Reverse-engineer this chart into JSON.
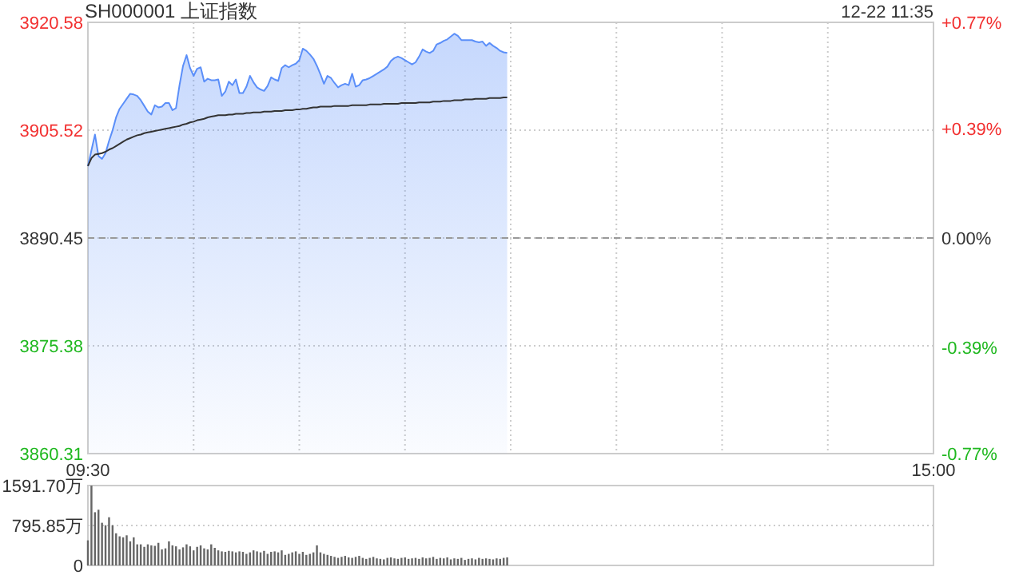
{
  "chart_data": [
    {
      "type": "area",
      "title": "SH000001 上证指数",
      "annotations": [
        "12-22 11:35"
      ],
      "categories": [
        "09:30",
        null,
        null,
        null,
        null,
        null,
        null,
        null,
        null,
        null,
        null,
        null,
        null,
        null,
        null,
        null,
        null,
        null,
        null,
        null,
        null,
        null,
        null,
        null,
        null,
        null,
        null,
        null,
        null,
        null,
        null,
        null,
        null,
        null,
        null,
        null,
        null,
        null,
        null,
        null,
        null,
        null,
        null,
        null,
        null,
        null,
        null,
        null,
        null,
        null,
        null,
        null,
        null,
        null,
        null,
        null,
        null,
        null,
        null,
        null,
        null,
        null,
        null,
        null,
        null,
        null,
        null,
        null,
        null,
        null,
        null,
        null,
        null,
        null,
        null,
        null,
        null,
        null,
        null,
        null,
        null,
        null,
        null,
        null,
        null,
        null,
        null,
        null,
        null,
        null,
        null,
        null,
        null,
        null,
        null,
        null,
        null,
        null,
        null,
        null,
        null,
        null,
        null,
        null,
        null,
        null,
        null,
        null,
        null,
        null,
        null,
        null,
        null,
        null,
        null,
        null,
        null,
        null,
        null,
        null,
        null,
        null,
        null,
        null,
        null,
        null,
        null,
        null,
        null,
        null,
        null,
        null,
        null,
        null,
        null,
        null,
        null,
        null,
        null,
        null,
        null,
        null,
        null,
        null,
        null,
        null,
        null,
        null,
        null,
        null,
        null,
        null,
        null,
        null,
        null,
        null,
        null,
        null,
        null,
        null,
        null,
        null,
        null,
        null,
        null,
        null,
        null,
        null,
        null,
        null,
        null,
        null,
        null,
        null,
        null,
        null,
        null,
        null,
        null,
        null,
        null,
        null,
        null,
        null,
        null,
        null,
        null,
        null,
        null,
        null,
        null,
        null,
        null,
        null,
        null,
        null,
        null,
        null,
        null,
        null,
        null,
        null,
        null,
        null,
        null,
        null,
        null,
        null,
        null,
        null,
        null,
        null,
        null,
        null,
        null,
        null,
        null,
        null,
        null,
        null,
        null,
        null,
        null,
        null,
        null,
        null,
        null,
        null,
        null,
        null,
        null,
        null,
        null,
        null,
        null,
        null,
        null,
        null,
        null,
        null,
        "15:00"
      ],
      "ylim": [
        3860.31,
        3920.58
      ],
      "yticks": [
        3860.31,
        3875.38,
        3890.45,
        3905.52,
        3920.58
      ],
      "y2lim": [
        -0.77,
        0.77
      ],
      "y2ticks": [
        {
          "value": -0.77,
          "label": "-0.77%"
        },
        {
          "value": -0.39,
          "label": "-0.39%"
        },
        {
          "value": 0,
          "label": "0.00%"
        },
        {
          "value": 0.39,
          "label": "+0.39%"
        },
        {
          "value": 0.77,
          "label": "+0.77%"
        }
      ],
      "grid": true,
      "ref_lines": [
        {
          "axis": "y",
          "value": 3890.45,
          "line_style": "dashed",
          "color": "#999999"
        }
      ],
      "series": [
        {
          "color": "#5b8ff9",
          "values": [
            3900.5,
            3902.7,
            3904.9,
            3901.9,
            3901.5,
            3902.3,
            3904.0,
            3905.5,
            3907.3,
            3908.5,
            3909.2,
            3909.9,
            3910.6,
            3910.5,
            3910.3,
            3909.7,
            3908.9,
            3908.1,
            3907.7,
            3909.0,
            3908.7,
            3908.8,
            3909.3,
            3909.3,
            3908.3,
            3908.6,
            3911.8,
            3914.5,
            3916.0,
            3914.2,
            3913.1,
            3914.1,
            3914.3,
            3912.3,
            3912.7,
            3912.5,
            3912.5,
            3912.6,
            3910.3,
            3910.9,
            3912.3,
            3911.8,
            3912.6,
            3910.7,
            3910.7,
            3911.6,
            3913.1,
            3912.2,
            3911.5,
            3911.2,
            3911.0,
            3911.7,
            3912.9,
            3912.6,
            3912.4,
            3914.2,
            3914.6,
            3914.3,
            3914.6,
            3914.8,
            3915.3,
            3916.9,
            3916.6,
            3916.1,
            3915.5,
            3914.5,
            3913.3,
            3912.0,
            3913.1,
            3912.8,
            3912.1,
            3911.5,
            3911.8,
            3912.0,
            3911.8,
            3913.4,
            3911.6,
            3911.8,
            3912.5,
            3912.6,
            3912.8,
            3913.1,
            3913.4,
            3913.7,
            3914.0,
            3914.4,
            3915.2,
            3915.6,
            3915.8,
            3915.6,
            3915.3,
            3915.0,
            3914.7,
            3915.0,
            3915.8,
            3916.8,
            3916.5,
            3916.3,
            3916.6,
            3917.5,
            3917.7,
            3918.0,
            3918.2,
            3918.6,
            3919.0,
            3918.7,
            3918.1,
            3918.1,
            3918.1,
            3918.1,
            3917.9,
            3917.8,
            3917.9,
            3917.3,
            3917.7,
            3917.3,
            3917.0,
            3916.6,
            3916.4,
            3916.3,
            null,
            null,
            null,
            null,
            null,
            null,
            null,
            null,
            null,
            null,
            null,
            null,
            null,
            null,
            null,
            null,
            null,
            null,
            null,
            null,
            null,
            null,
            null,
            null,
            null,
            null,
            null,
            null,
            null,
            null,
            null,
            null,
            null,
            null,
            null,
            null,
            null,
            null,
            null,
            null,
            null,
            null,
            null,
            null,
            null,
            null,
            null,
            null,
            null,
            null,
            null,
            null,
            null,
            null,
            null,
            null,
            null,
            null,
            null,
            null,
            null,
            null,
            null,
            null,
            null,
            null,
            null,
            null,
            null,
            null,
            null,
            null,
            null,
            null,
            null,
            null,
            null,
            null,
            null,
            null,
            null,
            null,
            null,
            null,
            null,
            null,
            null,
            null,
            null,
            null,
            null,
            null,
            null,
            null,
            null,
            null,
            null,
            null,
            null,
            null,
            null,
            null,
            null,
            null,
            null,
            null,
            null,
            null,
            null,
            null,
            null,
            null,
            null,
            null,
            null,
            null,
            null,
            null,
            null,
            null,
            null
          ]
        },
        {
          "type": "line",
          "color": "#333333",
          "values": [
            3900.5,
            3901.6,
            3902.1,
            3902.2,
            3902.3,
            3902.5,
            3902.8,
            3903.0,
            3903.3,
            3903.6,
            3903.9,
            3904.2,
            3904.4,
            3904.6,
            3904.8,
            3904.9,
            3905.1,
            3905.2,
            3905.3,
            3905.4,
            3905.5,
            3905.6,
            3905.7,
            3905.8,
            3905.9,
            3906.0,
            3906.1,
            3906.3,
            3906.4,
            3906.6,
            3906.7,
            3906.9,
            3907.0,
            3907.1,
            3907.3,
            3907.4,
            3907.5,
            3907.6,
            3907.6,
            3907.6,
            3907.7,
            3907.7,
            3907.8,
            3907.8,
            3907.8,
            3907.9,
            3907.9,
            3908.0,
            3908.0,
            3908.0,
            3908.1,
            3908.1,
            3908.1,
            3908.2,
            3908.2,
            3908.2,
            3908.3,
            3908.3,
            3908.3,
            3908.4,
            3908.4,
            3908.5,
            3908.5,
            3908.6,
            3908.7,
            3908.7,
            3908.8,
            3908.8,
            3908.8,
            3908.8,
            3908.9,
            3908.9,
            3908.9,
            3908.9,
            3908.9,
            3909.0,
            3909.0,
            3909.0,
            3909.0,
            3909.0,
            3909.1,
            3909.1,
            3909.1,
            3909.1,
            3909.2,
            3909.2,
            3909.2,
            3909.2,
            3909.2,
            3909.3,
            3909.3,
            3909.3,
            3909.3,
            3909.3,
            3909.4,
            3909.4,
            3909.4,
            3909.4,
            3909.5,
            3909.5,
            3909.5,
            3909.6,
            3909.6,
            3909.6,
            3909.7,
            3909.7,
            3909.7,
            3909.8,
            3909.8,
            3909.8,
            3909.9,
            3909.9,
            3909.9,
            3909.9,
            3910.0,
            3910.0,
            3910.0,
            3910.0,
            3910.1,
            3910.1,
            null,
            null,
            null,
            null,
            null,
            null,
            null,
            null,
            null,
            null,
            null,
            null,
            null,
            null,
            null,
            null,
            null,
            null,
            null,
            null,
            null,
            null,
            null,
            null,
            null,
            null,
            null,
            null,
            null,
            null,
            null,
            null,
            null,
            null,
            null,
            null,
            null,
            null,
            null,
            null,
            null,
            null,
            null,
            null,
            null,
            null,
            null,
            null,
            null,
            null,
            null,
            null,
            null,
            null,
            null,
            null,
            null,
            null,
            null,
            null,
            null,
            null,
            null,
            null,
            null,
            null,
            null,
            null,
            null,
            null,
            null,
            null,
            null,
            null,
            null,
            null,
            null,
            null,
            null,
            null,
            null,
            null,
            null,
            null,
            null,
            null,
            null,
            null,
            null,
            null,
            null,
            null,
            null,
            null,
            null,
            null,
            null,
            null,
            null,
            null,
            null,
            null,
            null,
            null,
            null,
            null,
            null,
            null,
            null,
            null,
            null,
            null,
            null,
            null,
            null,
            null,
            null,
            null,
            null,
            null,
            null
          ]
        }
      ]
    },
    {
      "type": "bar",
      "color": "#666666",
      "tick_labels": "y",
      "grid": "y",
      "ylim": [
        0,
        1591.7
      ],
      "yticks": [
        0,
        {
          "value": 795.85,
          "label": "795.85万"
        },
        {
          "value": 1591.7,
          "label": "1591.70万"
        }
      ],
      "categories": [
        null,
        null,
        null,
        null,
        null,
        null,
        null,
        null,
        null,
        null,
        null,
        null,
        null,
        null,
        null,
        null,
        null,
        null,
        null,
        null,
        null,
        null,
        null,
        null,
        null,
        null,
        null,
        null,
        null,
        null,
        null,
        null,
        null,
        null,
        null,
        null,
        null,
        null,
        null,
        null,
        null,
        null,
        null,
        null,
        null,
        null,
        null,
        null,
        null,
        null,
        null,
        null,
        null,
        null,
        null,
        null,
        null,
        null,
        null,
        null,
        null,
        null,
        null,
        null,
        null,
        null,
        null,
        null,
        null,
        null,
        null,
        null,
        null,
        null,
        null,
        null,
        null,
        null,
        null,
        null,
        null,
        null,
        null,
        null,
        null,
        null,
        null,
        null,
        null,
        null,
        null,
        null,
        null,
        null,
        null,
        null,
        null,
        null,
        null,
        null,
        null,
        null,
        null,
        null,
        null,
        null,
        null,
        null,
        null,
        null,
        null,
        null,
        null,
        null,
        null,
        null,
        null,
        null,
        null,
        null,
        null,
        null,
        null,
        null,
        null,
        null,
        null,
        null,
        null,
        null,
        null,
        null,
        null,
        null,
        null,
        null,
        null,
        null,
        null,
        null,
        null,
        null,
        null,
        null,
        null,
        null,
        null,
        null,
        null,
        null,
        null,
        null,
        null,
        null,
        null,
        null,
        null,
        null,
        null,
        null,
        null,
        null,
        null,
        null,
        null,
        null,
        null,
        null,
        null,
        null,
        null,
        null,
        null,
        null,
        null,
        null,
        null,
        null,
        null,
        null,
        null,
        null,
        null,
        null,
        null,
        null,
        null,
        null,
        null,
        null,
        null,
        null,
        null,
        null,
        null,
        null,
        null,
        null,
        null,
        null,
        null,
        null,
        null,
        null,
        null,
        null,
        null,
        null,
        null,
        null,
        null,
        null,
        null,
        null,
        null,
        null,
        null,
        null,
        null,
        null,
        null,
        null,
        null,
        null,
        null,
        null,
        null,
        null,
        null,
        null,
        null,
        null,
        null,
        null,
        null,
        null,
        null,
        null,
        null,
        null,
        null
      ],
      "values": [
        500,
        1590,
        1060,
        1110,
        850,
        800,
        960,
        800,
        640,
        580,
        560,
        600,
        480,
        560,
        420,
        420,
        370,
        420,
        400,
        390,
        450,
        320,
        340,
        480,
        400,
        380,
        320,
        360,
        420,
        380,
        300,
        370,
        400,
        340,
        320,
        420,
        350,
        300,
        280,
        270,
        290,
        280,
        260,
        280,
        270,
        230,
        260,
        300,
        280,
        260,
        290,
        230,
        270,
        280,
        260,
        300,
        210,
        230,
        260,
        280,
        230,
        270,
        210,
        230,
        260,
        400,
        260,
        230,
        210,
        190,
        170,
        150,
        170,
        190,
        160,
        150,
        170,
        190,
        150,
        130,
        150,
        170,
        140,
        130,
        120,
        150,
        160,
        140,
        130,
        150,
        160,
        130,
        140,
        150,
        130,
        160,
        140,
        150,
        170,
        130,
        150,
        140,
        160,
        120,
        140,
        130,
        150,
        110,
        130,
        140,
        120,
        150,
        130,
        140,
        130,
        120,
        140,
        130,
        150,
        160,
        null,
        null,
        null,
        null,
        null,
        null,
        null,
        null,
        null,
        null,
        null,
        null,
        null,
        null,
        null,
        null,
        null,
        null,
        null,
        null,
        null,
        null,
        null,
        null,
        null,
        null,
        null,
        null,
        null,
        null,
        null,
        null,
        null,
        null,
        null,
        null,
        null,
        null,
        null,
        null,
        null,
        null,
        null,
        null,
        null,
        null,
        null,
        null,
        null,
        null,
        null,
        null,
        null,
        null,
        null,
        null,
        null,
        null,
        null,
        null,
        null,
        null,
        null,
        null,
        null,
        null,
        null,
        null,
        null,
        null,
        null,
        null,
        null,
        null,
        null,
        null,
        null,
        null,
        null,
        null,
        null,
        null,
        null,
        null,
        null,
        null,
        null,
        null,
        null,
        null,
        null,
        null,
        null,
        null,
        null,
        null,
        null,
        null,
        null,
        null,
        null,
        null,
        null,
        null,
        null,
        null,
        null,
        null,
        null,
        null,
        null,
        null,
        null,
        null,
        null,
        null,
        null,
        null,
        null,
        null,
        null
      ]
    }
  ]
}
